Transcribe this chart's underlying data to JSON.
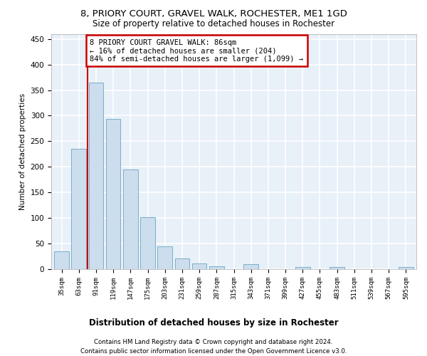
{
  "title": "8, PRIORY COURT, GRAVEL WALK, ROCHESTER, ME1 1GD",
  "subtitle": "Size of property relative to detached houses in Rochester",
  "xlabel_bottom": "Distribution of detached houses by size in Rochester",
  "ylabel": "Number of detached properties",
  "bar_color": "#ccdded",
  "bar_edge_color": "#7aaec8",
  "background_color": "#e8f0f8",
  "grid_color": "#ffffff",
  "categories": [
    "35sqm",
    "63sqm",
    "91sqm",
    "119sqm",
    "147sqm",
    "175sqm",
    "203sqm",
    "231sqm",
    "259sqm",
    "287sqm",
    "315sqm",
    "343sqm",
    "371sqm",
    "399sqm",
    "427sqm",
    "455sqm",
    "483sqm",
    "511sqm",
    "539sqm",
    "567sqm",
    "595sqm"
  ],
  "values": [
    35,
    235,
    365,
    293,
    195,
    101,
    44,
    21,
    11,
    6,
    0,
    10,
    0,
    0,
    4,
    0,
    4,
    0,
    0,
    0,
    4
  ],
  "ylim": [
    0,
    460
  ],
  "yticks": [
    0,
    50,
    100,
    150,
    200,
    250,
    300,
    350,
    400,
    450
  ],
  "property_line_x": 1.5,
  "annotation_text1": "8 PRIORY COURT GRAVEL WALK: 86sqm",
  "annotation_text2": "← 16% of detached houses are smaller (204)",
  "annotation_text3": "84% of semi-detached houses are larger (1,099) →",
  "annotation_box_color": "#cc0000",
  "footnote1": "Contains HM Land Registry data © Crown copyright and database right 2024.",
  "footnote2": "Contains public sector information licensed under the Open Government Licence v3.0."
}
